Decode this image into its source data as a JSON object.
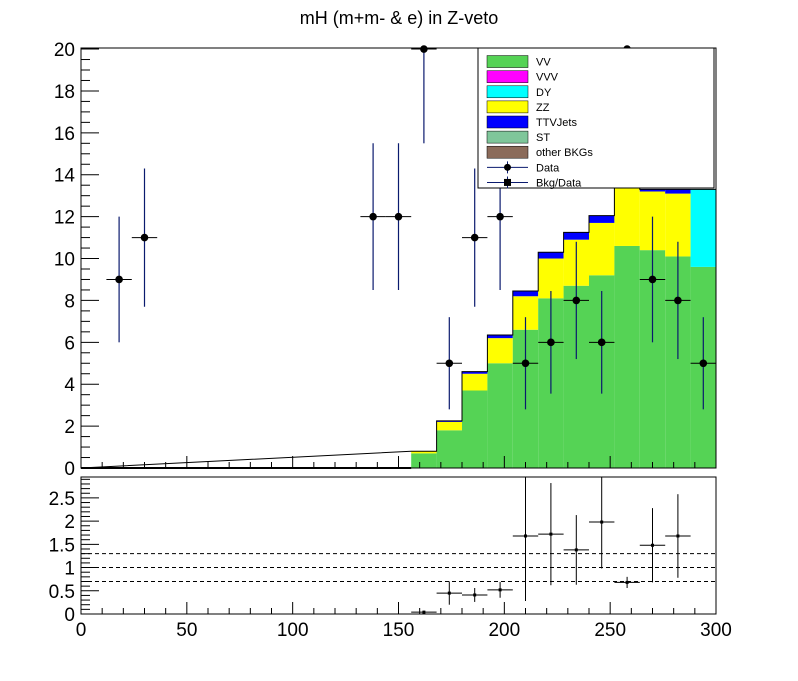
{
  "chart_data": [
    {
      "type": "bar",
      "title": "mH (m+m- & e) in Z-veto",
      "xlabel": "",
      "ylabel": "",
      "xlim": [
        0,
        300
      ],
      "ylim": [
        0,
        20
      ],
      "bin_width": 12,
      "x_ticks": [
        "0",
        "50",
        "100",
        "150",
        "200",
        "250",
        "300"
      ],
      "y_ticks": [
        "0",
        "2",
        "4",
        "6",
        "8",
        "10",
        "12",
        "14",
        "16",
        "18",
        "20"
      ],
      "legend": [
        {
          "label": "VV",
          "color": "#55d355",
          "style": "box"
        },
        {
          "label": "VVV",
          "color": "#ff00ff",
          "style": "box"
        },
        {
          "label": "DY",
          "color": "#00ffff",
          "style": "box"
        },
        {
          "label": "ZZ",
          "color": "#ffff00",
          "style": "box"
        },
        {
          "label": "TTVJets",
          "color": "#0000ff",
          "style": "box"
        },
        {
          "label": "ST",
          "color": "#7fc69a",
          "style": "box"
        },
        {
          "label": "other BKGs",
          "color": "#8b6b5a",
          "style": "box"
        },
        {
          "label": "Data",
          "color": "#000000",
          "style": "marker"
        },
        {
          "label": "Bkg/Data",
          "color": "#000000",
          "style": "square"
        }
      ],
      "legend_position": "top-right",
      "stack_bins": [
        {
          "x0": 156,
          "x1": 168,
          "VV": 0.7,
          "DY": 0,
          "ZZ": 0.1,
          "TTVJets": 0.0
        },
        {
          "x0": 168,
          "x1": 180,
          "VV": 1.8,
          "DY": 0,
          "ZZ": 0.4,
          "TTVJets": 0.05
        },
        {
          "x0": 180,
          "x1": 192,
          "VV": 3.7,
          "DY": 0,
          "ZZ": 0.8,
          "TTVJets": 0.1
        },
        {
          "x0": 192,
          "x1": 204,
          "VV": 5.0,
          "DY": 0,
          "ZZ": 1.2,
          "TTVJets": 0.15
        },
        {
          "x0": 204,
          "x1": 216,
          "VV": 6.6,
          "DY": 0,
          "ZZ": 1.6,
          "TTVJets": 0.25
        },
        {
          "x0": 216,
          "x1": 228,
          "VV": 8.1,
          "DY": 0,
          "ZZ": 1.9,
          "TTVJets": 0.3
        },
        {
          "x0": 228,
          "x1": 240,
          "VV": 8.7,
          "DY": 0,
          "ZZ": 2.2,
          "TTVJets": 0.35
        },
        {
          "x0": 240,
          "x1": 252,
          "VV": 9.2,
          "DY": 0,
          "ZZ": 2.5,
          "TTVJets": 0.35
        },
        {
          "x0": 252,
          "x1": 264,
          "VV": 10.6,
          "DY": 0,
          "ZZ": 3.1,
          "TTVJets": 0.4
        },
        {
          "x0": 264,
          "x1": 276,
          "VV": 10.4,
          "DY": 0,
          "ZZ": 2.8,
          "TTVJets": 0.1
        },
        {
          "x0": 276,
          "x1": 288,
          "VV": 10.1,
          "DY": 0,
          "ZZ": 3.0,
          "TTVJets": 0.2
        },
        {
          "x0": 288,
          "x1": 300,
          "VV": 9.6,
          "DY": 3.7,
          "ZZ": 0.0,
          "TTVJets": 0.0
        }
      ],
      "data_points": [
        {
          "x": 18,
          "y": 9,
          "err": 3
        },
        {
          "x": 30,
          "y": 11,
          "err": 3.3
        },
        {
          "x": 138,
          "y": 12,
          "err": 3.5
        },
        {
          "x": 150,
          "y": 12,
          "err": 3.5
        },
        {
          "x": 162,
          "y": 20,
          "err": 4.5
        },
        {
          "x": 174,
          "y": 5,
          "err": 2.2
        },
        {
          "x": 186,
          "y": 11,
          "err": 3.3
        },
        {
          "x": 198,
          "y": 12,
          "err": 3.5
        },
        {
          "x": 210,
          "y": 5,
          "err": 2.2
        },
        {
          "x": 222,
          "y": 6,
          "err": 2.45
        },
        {
          "x": 234,
          "y": 8,
          "err": 2.8
        },
        {
          "x": 246,
          "y": 6,
          "err": 2.45
        },
        {
          "x": 258,
          "y": 20,
          "err": 4.5
        },
        {
          "x": 270,
          "y": 9,
          "err": 3
        },
        {
          "x": 282,
          "y": 8,
          "err": 2.8
        },
        {
          "x": 294,
          "y": 5,
          "err": 2.2
        }
      ]
    },
    {
      "type": "scatter",
      "xlabel": "",
      "ylabel": "",
      "xlim": [
        0,
        300
      ],
      "ylim": [
        0,
        3
      ],
      "x_ticks": [
        "0",
        "50",
        "100",
        "150",
        "200",
        "250",
        "300"
      ],
      "y_ticks": [
        "0",
        "0.5",
        "1",
        "1.5",
        "2",
        "2.5"
      ],
      "reference_lines": [
        0.7,
        1.0,
        1.3
      ],
      "points": [
        {
          "x": 162,
          "y": 0.04,
          "xerr": 6,
          "yerr": 0.03
        },
        {
          "x": 174,
          "y": 0.45,
          "xerr": 6,
          "yerr": 0.25
        },
        {
          "x": 186,
          "y": 0.41,
          "xerr": 6,
          "yerr": 0.15
        },
        {
          "x": 198,
          "y": 0.52,
          "xerr": 6,
          "yerr": 0.17
        },
        {
          "x": 210,
          "y": 1.68,
          "xerr": 6,
          "yerr": 1.4
        },
        {
          "x": 222,
          "y": 1.72,
          "xerr": 6,
          "yerr": 1.1
        },
        {
          "x": 234,
          "y": 1.38,
          "xerr": 6,
          "yerr": 0.75
        },
        {
          "x": 246,
          "y": 1.98,
          "xerr": 6,
          "yerr": 1.0
        },
        {
          "x": 258,
          "y": 0.68,
          "xerr": 6,
          "yerr": 0.12
        },
        {
          "x": 270,
          "y": 1.48,
          "xerr": 6,
          "yerr": 0.8
        },
        {
          "x": 282,
          "y": 1.68,
          "xerr": 6,
          "yerr": 0.9
        }
      ]
    }
  ]
}
